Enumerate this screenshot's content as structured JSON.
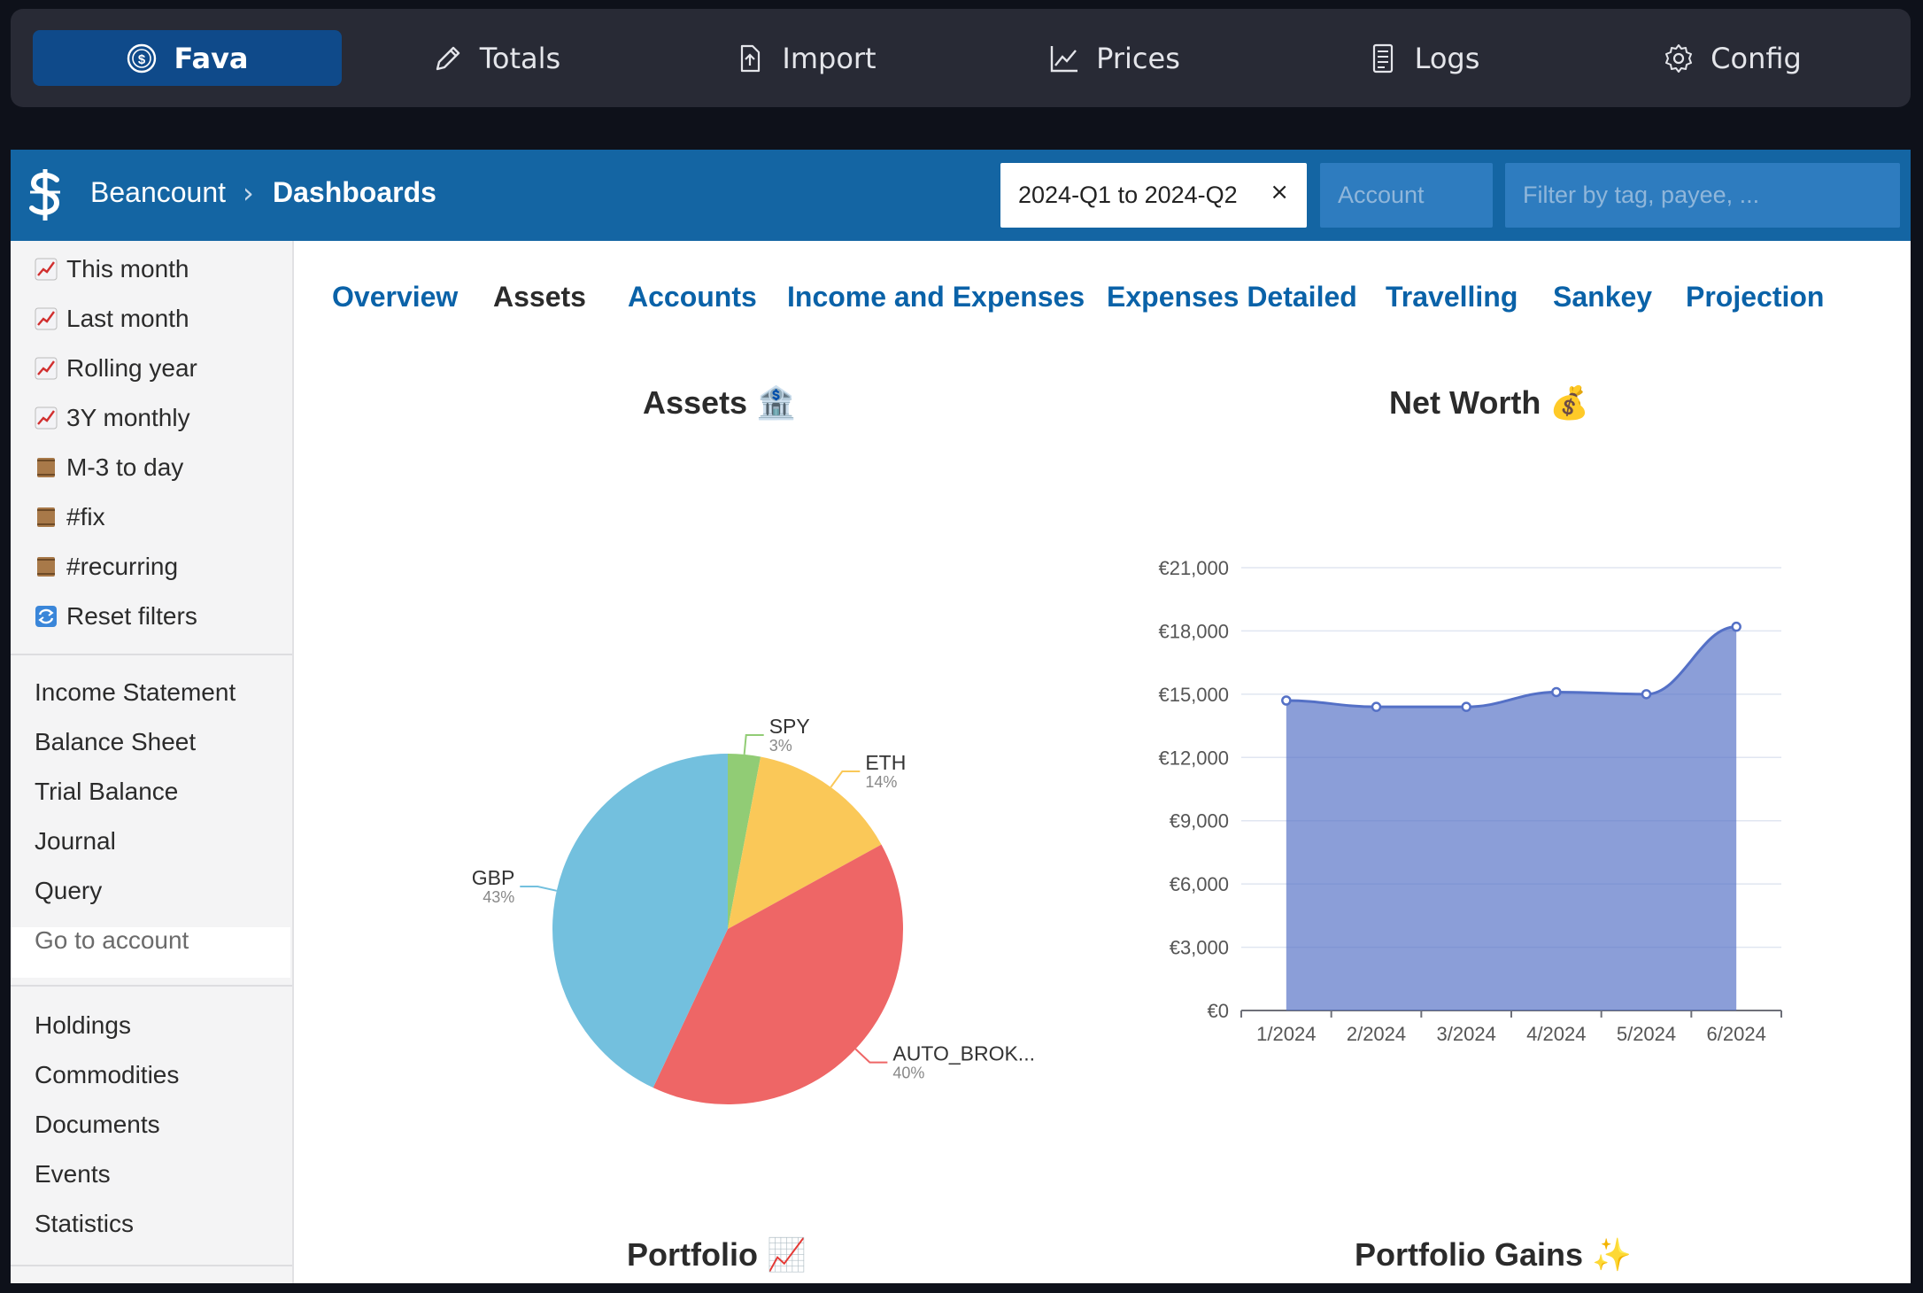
{
  "topbar": {
    "tabs": [
      {
        "label": "Fava",
        "icon": "dollar-circle-icon"
      },
      {
        "label": "Totals",
        "icon": "pencil-icon"
      },
      {
        "label": "Import",
        "icon": "file-upload-icon"
      },
      {
        "label": "Prices",
        "icon": "chart-line-icon"
      },
      {
        "label": "Logs",
        "icon": "document-icon"
      },
      {
        "label": "Config",
        "icon": "gear-icon"
      }
    ]
  },
  "header": {
    "crumb_root": "Beancount",
    "crumb_sep": "›",
    "crumb_current": "Dashboards",
    "time_filter": "2024-Q1 to 2024-Q2",
    "clear_label": "×",
    "account_placeholder": "Account",
    "tag_placeholder": "Filter by tag, payee, ...",
    "brand_color": "#1465a3"
  },
  "sidebar": {
    "quick": [
      {
        "label": "This month",
        "icon": "chart-increasing-emoji"
      },
      {
        "label": "Last month",
        "icon": "chart-increasing-emoji"
      },
      {
        "label": "Rolling year",
        "icon": "chart-increasing-emoji"
      },
      {
        "label": "3Y monthly",
        "icon": "chart-increasing-emoji"
      },
      {
        "label": "M-3 to day",
        "icon": "scroll-emoji"
      },
      {
        "label": "#fix",
        "icon": "scroll-emoji"
      },
      {
        "label": "#recurring",
        "icon": "scroll-emoji"
      },
      {
        "label": "Reset filters",
        "icon": "repeat-emoji"
      }
    ],
    "reports": [
      "Income Statement",
      "Balance Sheet",
      "Trial Balance",
      "Journal",
      "Query",
      "Go to account"
    ],
    "more": [
      "Holdings",
      "Commodities",
      "Documents",
      "Events",
      "Statistics"
    ]
  },
  "tabs": [
    "Overview",
    "Assets",
    "Accounts",
    "Income and Expenses",
    "Expenses Detailed",
    "Travelling",
    "Sankey",
    "Projection"
  ],
  "titles": {
    "assets": "Assets 🏦",
    "net_worth": "Net Worth 💰",
    "portfolio": "Portfolio 📈",
    "portfolio_gains": "Portfolio Gains ✨"
  },
  "chart_data": [
    {
      "type": "pie",
      "title": "Assets 🏦",
      "slices": [
        {
          "label": "SPY",
          "pct_label": "3%",
          "value": 3,
          "color": "#91cc75"
        },
        {
          "label": "ETH",
          "pct_label": "14%",
          "value": 14,
          "color": "#fac858"
        },
        {
          "label": "AUTO_BROK...",
          "pct_label": "40%",
          "value": 40,
          "color": "#ee6666"
        },
        {
          "label": "GBP",
          "pct_label": "43%",
          "value": 43,
          "color": "#73c0de"
        }
      ]
    },
    {
      "type": "area",
      "title": "Net Worth 💰",
      "categories": [
        "1/2024",
        "2/2024",
        "3/2024",
        "4/2024",
        "5/2024",
        "6/2024"
      ],
      "values": [
        14700,
        14400,
        14400,
        15100,
        15000,
        18200
      ],
      "ylim": [
        0,
        21000
      ],
      "yticks": [
        0,
        3000,
        6000,
        9000,
        12000,
        15000,
        18000,
        21000
      ],
      "ytick_labels": [
        "€0",
        "€3,000",
        "€6,000",
        "€9,000",
        "€12,000",
        "€15,000",
        "€18,000",
        "€21,000"
      ],
      "color": "#5470c6"
    }
  ]
}
